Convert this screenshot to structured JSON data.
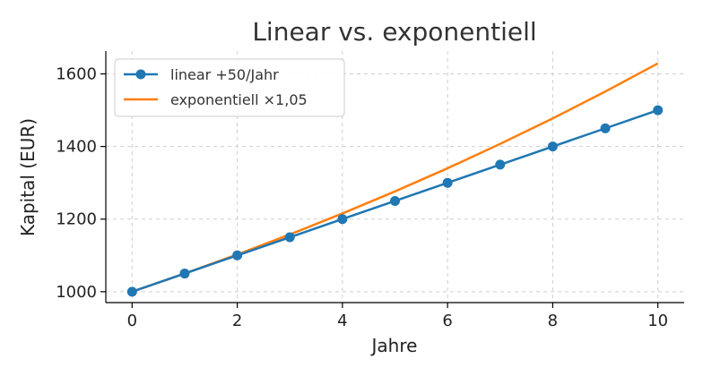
{
  "chart_data": {
    "type": "line",
    "title": "Linear vs. exponentiell",
    "xlabel": "Jahre",
    "ylabel": "Kapital (EUR)",
    "x": [
      0,
      1,
      2,
      3,
      4,
      5,
      6,
      7,
      8,
      9,
      10
    ],
    "xlim": [
      -0.5,
      10.5
    ],
    "ylim": [
      970,
      1663
    ],
    "xticks": [
      "0",
      "2",
      "4",
      "6",
      "8",
      "10"
    ],
    "yticks": [
      "1000",
      "1200",
      "1400",
      "1600"
    ],
    "grid": true,
    "legend_position": "top-left",
    "series": [
      {
        "name": "linear +50/Jahr",
        "color": "#1f77b4",
        "marker": "circle",
        "values": [
          1000,
          1050,
          1100,
          1150,
          1200,
          1250,
          1300,
          1350,
          1400,
          1450,
          1500
        ]
      },
      {
        "name": "exponentiell ×1,05",
        "color": "#ff7f0e",
        "marker": "none",
        "values": [
          1000,
          1050,
          1102.5,
          1157.6,
          1215.5,
          1276.3,
          1340.1,
          1407.1,
          1477.5,
          1551.3,
          1628.9
        ]
      }
    ]
  }
}
